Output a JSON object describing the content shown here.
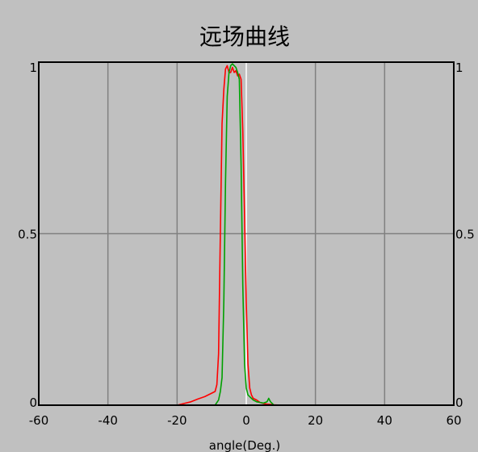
{
  "chart_data": {
    "type": "line",
    "title": "远场曲线",
    "xlabel": "angle(Deg.)",
    "ylabel": "",
    "xlim": [
      -60,
      60
    ],
    "ylim": [
      0,
      1
    ],
    "x_ticks": [
      -60,
      -40,
      -20,
      0,
      20,
      40,
      60
    ],
    "x_tick_labels": [
      "-60",
      "-40",
      "-20",
      "0",
      "20",
      "40",
      "60"
    ],
    "y_ticks": [
      0,
      0.5,
      1
    ],
    "y_tick_labels": [
      "0",
      "0.5",
      "1"
    ],
    "grid": true,
    "colors": {
      "background": "#c0c0c0",
      "plot_frame": "#000000",
      "grid": "#808080",
      "zero_line": "#ffffff"
    },
    "series": [
      {
        "color": "#ff0000",
        "x": [
          -20,
          -18,
          -16,
          -14,
          -12,
          -10,
          -9,
          -8.5,
          -8,
          -7.5,
          -7,
          -6.5,
          -6,
          -5.5,
          -5,
          -4.5,
          -4,
          -3.5,
          -3,
          -2.5,
          -2,
          -1.5,
          -1,
          -0.5,
          0,
          0.5,
          1,
          1.5,
          2,
          3,
          4,
          5,
          6,
          7,
          8,
          10
        ],
        "y": [
          0.0,
          0.005,
          0.01,
          0.018,
          0.025,
          0.035,
          0.04,
          0.06,
          0.15,
          0.5,
          0.82,
          0.92,
          0.98,
          0.99,
          0.97,
          0.97,
          0.985,
          0.97,
          0.975,
          0.96,
          0.965,
          0.95,
          0.8,
          0.55,
          0.3,
          0.12,
          0.05,
          0.03,
          0.02,
          0.015,
          0.008,
          0.005,
          0.003,
          0.002,
          0.001,
          0.0
        ]
      },
      {
        "color": "#00a000",
        "x": [
          -9,
          -8,
          -7.5,
          -7,
          -6.5,
          -6,
          -5.5,
          -5,
          -4.5,
          -4,
          -3.5,
          -3,
          -2.5,
          -2,
          -1.5,
          -1,
          -0.5,
          0,
          0.5,
          1,
          1.5,
          2,
          3,
          4,
          5,
          6,
          6.5,
          7,
          8
        ],
        "y": [
          0.0,
          0.015,
          0.04,
          0.08,
          0.3,
          0.65,
          0.9,
          0.97,
          0.99,
          0.995,
          0.99,
          0.985,
          0.97,
          0.95,
          0.7,
          0.35,
          0.12,
          0.05,
          0.03,
          0.025,
          0.02,
          0.015,
          0.01,
          0.008,
          0.006,
          0.01,
          0.02,
          0.01,
          0.0
        ]
      }
    ]
  }
}
